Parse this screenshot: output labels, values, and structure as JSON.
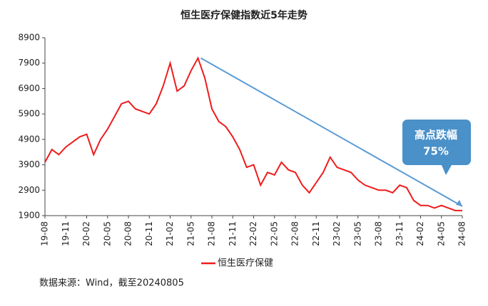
{
  "chart_data": {
    "type": "line",
    "title": "恒生医疗保健指数近5年走势",
    "x": [
      "19-08",
      "19-09",
      "19-10",
      "19-11",
      "19-12",
      "20-01",
      "20-02",
      "20-03",
      "20-04",
      "20-05",
      "20-06",
      "20-07",
      "20-08",
      "20-09",
      "20-10",
      "20-11",
      "20-12",
      "21-01",
      "21-02",
      "21-03",
      "21-04",
      "21-05",
      "21-06",
      "21-07",
      "21-08",
      "21-09",
      "21-10",
      "21-11",
      "21-12",
      "22-01",
      "22-02",
      "22-03",
      "22-04",
      "22-05",
      "22-06",
      "22-07",
      "22-08",
      "22-09",
      "22-10",
      "22-11",
      "22-12",
      "23-01",
      "23-02",
      "23-03",
      "23-04",
      "23-05",
      "23-06",
      "23-07",
      "23-08",
      "23-09",
      "23-10",
      "23-11",
      "23-12",
      "24-01",
      "24-02",
      "24-03",
      "24-04",
      "24-05",
      "24-06",
      "24-07",
      "24-08"
    ],
    "series": [
      {
        "name": "恒生医疗保健",
        "color": "#ee1c1c",
        "values": [
          4000,
          4500,
          4300,
          4600,
          4800,
          5000,
          5100,
          4300,
          4900,
          5300,
          5800,
          6300,
          6400,
          6100,
          6000,
          5900,
          6300,
          7000,
          7900,
          6800,
          7000,
          7600,
          8100,
          7300,
          6100,
          5600,
          5400,
          5000,
          4500,
          3800,
          3900,
          3100,
          3600,
          3500,
          4000,
          3700,
          3600,
          3100,
          2800,
          3200,
          3600,
          4200,
          3800,
          3700,
          3600,
          3300,
          3100,
          3000,
          2900,
          2900,
          2800,
          3100,
          3000,
          2500,
          2300,
          2300,
          2200,
          2300,
          2200,
          2100,
          2100
        ]
      }
    ],
    "xticks": [
      "19-08",
      "19-11",
      "20-02",
      "20-05",
      "20-08",
      "20-11",
      "21-02",
      "21-05",
      "21-08",
      "21-11",
      "22-02",
      "22-05",
      "22-08",
      "22-11",
      "23-02",
      "23-05",
      "23-08",
      "23-11",
      "24-02",
      "24-05",
      "24-08"
    ],
    "ylim": [
      1900,
      8900
    ],
    "yticks": [
      1900,
      2900,
      3900,
      4900,
      5900,
      6900,
      7900,
      8900
    ],
    "annotations": [
      "高点跌幅",
      "75%"
    ],
    "source": "数据来源：Wind，截至20240805",
    "legend": "bottom"
  }
}
